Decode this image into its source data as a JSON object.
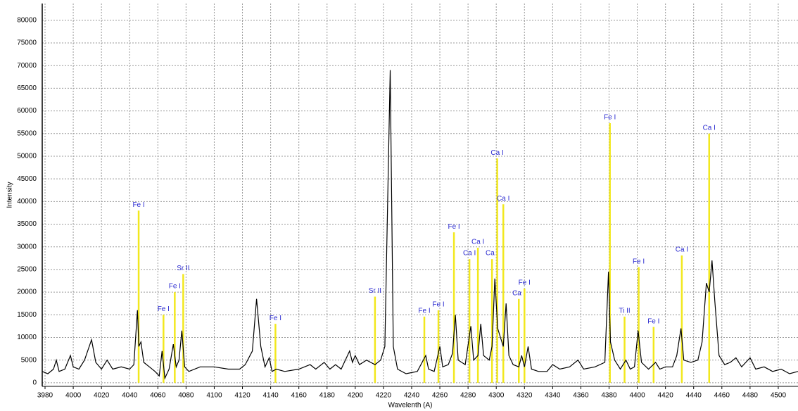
{
  "chart_data": {
    "type": "line",
    "x_label": "Wavelenth (A)",
    "y_label": "Intensity",
    "xlim": [
      3978,
      4514
    ],
    "ylim": [
      -800,
      83700
    ],
    "xticks": [
      3980,
      4000,
      4020,
      4040,
      4060,
      4080,
      4100,
      4120,
      4140,
      4160,
      4180,
      4200,
      4220,
      4240,
      4260,
      4280,
      4300,
      4320,
      4340,
      4360,
      4380,
      4400,
      4420,
      4440,
      4460,
      4480,
      4500
    ],
    "yticks": [
      0,
      5000,
      10000,
      15000,
      20000,
      25000,
      30000,
      35000,
      40000,
      45000,
      50000,
      55000,
      60000,
      65000,
      70000,
      75000,
      80000
    ],
    "grid": true,
    "x": [
      3978,
      3982,
      3986,
      3988,
      3990,
      3994,
      3998,
      4000,
      4004,
      4008,
      4013,
      4016,
      4020,
      4024,
      4028,
      4034,
      4040,
      4043,
      4045.5,
      4046.5,
      4048,
      4050,
      4054,
      4058,
      4061,
      4063,
      4065,
      4068,
      4071,
      4073,
      4075,
      4077,
      4079,
      4082,
      4090,
      4100,
      4110,
      4118,
      4122,
      4127,
      4130,
      4133,
      4136,
      4139,
      4141,
      4144,
      4150,
      4160,
      4168,
      4172,
      4178,
      4182,
      4186,
      4190,
      4196,
      4198,
      4200,
      4203,
      4208,
      4214,
      4218,
      4221,
      4224.8,
      4227,
      4230,
      4236,
      4244,
      4250,
      4252,
      4256,
      4260,
      4262,
      4266,
      4269,
      4271,
      4273,
      4278,
      4282,
      4284,
      4287,
      4289,
      4291,
      4295,
      4297,
      4299,
      4301,
      4303,
      4305,
      4307,
      4309,
      4312,
      4316,
      4318,
      4320,
      4322.6,
      4325,
      4330,
      4336,
      4340,
      4345,
      4352,
      4358,
      4362,
      4370,
      4377,
      4379.6,
      4381,
      4384,
      4388,
      4392,
      4395,
      4398,
      4400.6,
      4403,
      4408,
      4413,
      4416,
      4420,
      4425,
      4428,
      4431,
      4433,
      4438,
      4443,
      4446,
      4449,
      4451,
      4453,
      4455,
      4458,
      4462,
      4466,
      4470,
      4474,
      4480,
      4484,
      4490,
      4496,
      4502,
      4508,
      4514
    ],
    "series": [
      {
        "color": "#000000",
        "values": [
          2500,
          2000,
          3000,
          5000,
          2500,
          3000,
          6000,
          3500,
          3000,
          5000,
          9500,
          4500,
          3000,
          5000,
          3000,
          3500,
          3000,
          4000,
          16000,
          8000,
          9000,
          4500,
          3500,
          2500,
          1500,
          7000,
          1000,
          3000,
          8500,
          3500,
          5000,
          11500,
          3500,
          2500,
          3500,
          3500,
          3000,
          3000,
          4000,
          7000,
          18500,
          8000,
          3500,
          5500,
          2500,
          3000,
          2500,
          3000,
          4000,
          3000,
          4500,
          3000,
          4000,
          3000,
          7000,
          4500,
          6000,
          4000,
          5000,
          4000,
          5000,
          8000,
          69000,
          8000,
          3000,
          2000,
          2500,
          6000,
          3000,
          2500,
          8000,
          3500,
          4000,
          6500,
          15000,
          5000,
          4000,
          12500,
          5000,
          6000,
          13000,
          6000,
          5000,
          8000,
          23000,
          12000,
          10000,
          8000,
          17500,
          6000,
          4000,
          3500,
          6000,
          3500,
          8000,
          3000,
          2500,
          2500,
          4000,
          3000,
          3500,
          5000,
          3000,
          3500,
          4500,
          24500,
          9000,
          5000,
          3000,
          5000,
          3000,
          3500,
          11500,
          4500,
          3000,
          4500,
          3000,
          3500,
          3500,
          6000,
          12000,
          5000,
          4500,
          5000,
          9000,
          22000,
          20000,
          27000,
          18000,
          6000,
          4000,
          4500,
          5500,
          3500,
          5500,
          3000,
          3500,
          2500,
          3000,
          2000,
          2500
        ]
      }
    ],
    "line_ids": {
      "color": "#f2e81e",
      "labels": [
        "Fe I",
        "Fe I",
        "Fe I",
        "Sr II",
        "Fe I",
        "Sr II",
        "Fe I",
        "Fe I",
        "Fe I",
        "Ca I",
        "Ca I",
        "Ca I",
        "Ca I",
        "Ca I",
        "Ca I",
        "Fe I",
        "Fe I",
        "Ti II",
        "Fe I",
        "Fe I",
        "Ca I",
        "Ca I"
      ],
      "x": [
        4046.4,
        4064,
        4072,
        4078,
        4143.4,
        4214,
        4249,
        4259,
        4270,
        4281,
        4287,
        4297,
        4300.7,
        4305,
        4316,
        4320,
        4380.6,
        4391,
        4401,
        4411.6,
        4431.6,
        4451
      ],
      "values": [
        38000,
        15000,
        20000,
        24000,
        13000,
        19000,
        14600,
        16000,
        33200,
        27300,
        29800,
        27300,
        49500,
        39400,
        18500,
        20800,
        57300,
        14600,
        25500,
        12300,
        28100,
        55000
      ]
    }
  }
}
